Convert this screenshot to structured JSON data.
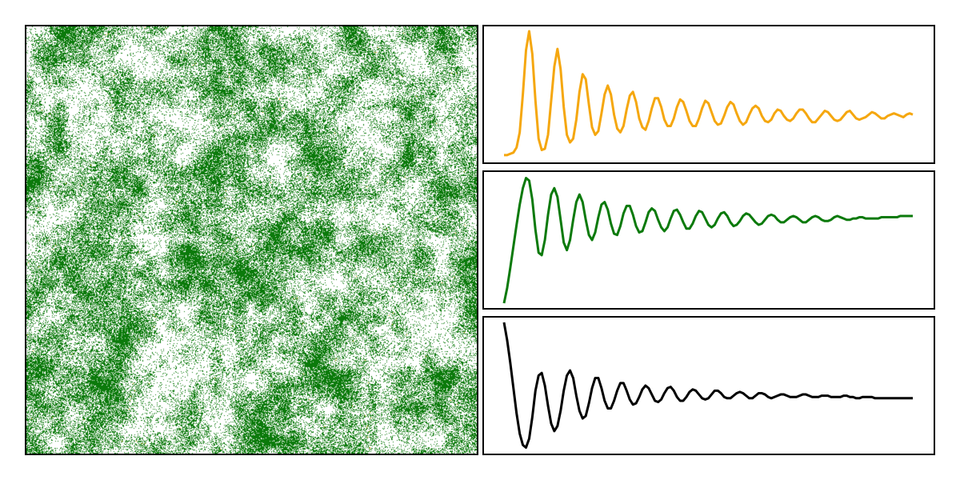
{
  "colors": {
    "burning": "#f5a70f",
    "tree": "#0b7a0b",
    "empty": "#000000",
    "background": "#ffffff",
    "frame": "#000000"
  },
  "lattice": {
    "description_states": [
      "empty",
      "tree",
      "burning"
    ]
  },
  "chart_data": [
    {
      "type": "line",
      "series": [
        {
          "key": "burning",
          "color": "#f5a70f",
          "x": [
            0,
            1,
            2,
            3,
            4,
            5,
            6,
            7,
            8,
            9,
            10,
            11,
            12,
            13,
            14,
            15,
            16,
            17,
            18,
            19,
            20,
            21,
            22,
            23,
            24,
            25,
            26,
            27,
            28,
            29,
            30,
            31,
            32,
            33,
            34,
            35,
            36,
            37,
            38,
            39,
            40,
            41,
            42,
            43,
            44,
            45,
            46,
            47,
            48,
            49,
            50,
            51,
            52,
            53,
            54,
            55,
            56,
            57,
            58,
            59,
            60,
            61,
            62,
            63,
            64,
            65,
            66,
            67,
            68,
            69,
            70,
            71,
            72,
            73,
            74,
            75,
            76,
            77,
            78,
            79,
            80,
            81,
            82,
            83,
            84,
            85,
            86,
            87,
            88,
            89,
            90,
            91,
            92,
            93,
            94,
            95,
            96,
            97,
            98,
            99,
            100,
            101,
            102,
            103,
            104,
            105,
            106,
            107,
            108,
            109,
            110,
            111,
            112,
            113,
            114,
            115,
            116,
            117,
            118,
            119,
            120,
            121,
            122,
            123,
            124,
            125,
            126,
            127,
            128,
            129,
            130
          ],
          "y": [
            0.02,
            0.02,
            0.03,
            0.04,
            0.08,
            0.2,
            0.5,
            0.85,
            1.0,
            0.82,
            0.45,
            0.15,
            0.06,
            0.07,
            0.18,
            0.45,
            0.72,
            0.86,
            0.7,
            0.4,
            0.18,
            0.12,
            0.15,
            0.3,
            0.52,
            0.66,
            0.62,
            0.42,
            0.24,
            0.18,
            0.21,
            0.35,
            0.5,
            0.57,
            0.5,
            0.34,
            0.23,
            0.2,
            0.25,
            0.38,
            0.49,
            0.52,
            0.44,
            0.31,
            0.24,
            0.22,
            0.29,
            0.39,
            0.47,
            0.47,
            0.4,
            0.3,
            0.25,
            0.25,
            0.31,
            0.4,
            0.46,
            0.44,
            0.37,
            0.29,
            0.25,
            0.25,
            0.31,
            0.39,
            0.45,
            0.43,
            0.36,
            0.29,
            0.26,
            0.27,
            0.33,
            0.4,
            0.44,
            0.42,
            0.35,
            0.29,
            0.26,
            0.28,
            0.34,
            0.39,
            0.41,
            0.39,
            0.33,
            0.29,
            0.28,
            0.3,
            0.35,
            0.38,
            0.37,
            0.33,
            0.3,
            0.29,
            0.31,
            0.35,
            0.38,
            0.38,
            0.35,
            0.31,
            0.28,
            0.28,
            0.31,
            0.34,
            0.37,
            0.36,
            0.33,
            0.3,
            0.29,
            0.3,
            0.33,
            0.36,
            0.37,
            0.34,
            0.31,
            0.3,
            0.31,
            0.32,
            0.34,
            0.36,
            0.35,
            0.33,
            0.31,
            0.31,
            0.33,
            0.34,
            0.35,
            0.34,
            0.33,
            0.32,
            0.34,
            0.35,
            0.34
          ],
          "ylim": [
            0,
            1
          ]
        }
      ]
    },
    {
      "type": "line",
      "series": [
        {
          "key": "trees",
          "color": "#0b7a0b",
          "x": [
            0,
            1,
            2,
            3,
            4,
            5,
            6,
            7,
            8,
            9,
            10,
            11,
            12,
            13,
            14,
            15,
            16,
            17,
            18,
            19,
            20,
            21,
            22,
            23,
            24,
            25,
            26,
            27,
            28,
            29,
            30,
            31,
            32,
            33,
            34,
            35,
            36,
            37,
            38,
            39,
            40,
            41,
            42,
            43,
            44,
            45,
            46,
            47,
            48,
            49,
            50,
            51,
            52,
            53,
            54,
            55,
            56,
            57,
            58,
            59,
            60,
            61,
            62,
            63,
            64,
            65,
            66,
            67,
            68,
            69,
            70,
            71,
            72,
            73,
            74,
            75,
            76,
            77,
            78,
            79,
            80,
            81,
            82,
            83,
            84,
            85,
            86,
            87,
            88,
            89,
            90,
            91,
            92,
            93,
            94,
            95,
            96,
            97,
            98,
            99,
            100,
            101,
            102,
            103,
            104,
            105,
            106,
            107,
            108,
            109,
            110,
            111,
            112,
            113,
            114,
            115,
            116,
            117,
            118,
            119,
            120,
            121,
            122,
            123,
            124,
            125,
            126,
            127,
            128,
            129,
            130
          ],
          "y": [
            0.0,
            0.12,
            0.28,
            0.45,
            0.62,
            0.78,
            0.91,
            0.99,
            0.97,
            0.82,
            0.58,
            0.4,
            0.38,
            0.5,
            0.7,
            0.86,
            0.91,
            0.84,
            0.66,
            0.48,
            0.42,
            0.5,
            0.66,
            0.8,
            0.86,
            0.8,
            0.66,
            0.54,
            0.5,
            0.56,
            0.68,
            0.78,
            0.8,
            0.74,
            0.63,
            0.55,
            0.54,
            0.61,
            0.71,
            0.77,
            0.77,
            0.7,
            0.61,
            0.56,
            0.57,
            0.64,
            0.72,
            0.75,
            0.73,
            0.66,
            0.6,
            0.57,
            0.6,
            0.67,
            0.73,
            0.74,
            0.7,
            0.64,
            0.59,
            0.59,
            0.63,
            0.69,
            0.73,
            0.72,
            0.67,
            0.62,
            0.6,
            0.62,
            0.67,
            0.71,
            0.72,
            0.69,
            0.64,
            0.61,
            0.62,
            0.65,
            0.69,
            0.71,
            0.7,
            0.67,
            0.64,
            0.62,
            0.63,
            0.66,
            0.69,
            0.7,
            0.69,
            0.66,
            0.64,
            0.64,
            0.66,
            0.68,
            0.69,
            0.68,
            0.66,
            0.64,
            0.64,
            0.66,
            0.68,
            0.69,
            0.68,
            0.66,
            0.65,
            0.65,
            0.66,
            0.68,
            0.69,
            0.68,
            0.67,
            0.66,
            0.66,
            0.67,
            0.67,
            0.68,
            0.68,
            0.67,
            0.67,
            0.67,
            0.67,
            0.67,
            0.68,
            0.68,
            0.68,
            0.68,
            0.68,
            0.68,
            0.69,
            0.69,
            0.69,
            0.69,
            0.69
          ],
          "ylim": [
            0,
            1
          ]
        }
      ]
    },
    {
      "type": "line",
      "series": [
        {
          "key": "empty",
          "color": "#000000",
          "x": [
            0,
            1,
            2,
            3,
            4,
            5,
            6,
            7,
            8,
            9,
            10,
            11,
            12,
            13,
            14,
            15,
            16,
            17,
            18,
            19,
            20,
            21,
            22,
            23,
            24,
            25,
            26,
            27,
            28,
            29,
            30,
            31,
            32,
            33,
            34,
            35,
            36,
            37,
            38,
            39,
            40,
            41,
            42,
            43,
            44,
            45,
            46,
            47,
            48,
            49,
            50,
            51,
            52,
            53,
            54,
            55,
            56,
            57,
            58,
            59,
            60,
            61,
            62,
            63,
            64,
            65,
            66,
            67,
            68,
            69,
            70,
            71,
            72,
            73,
            74,
            75,
            76,
            77,
            78,
            79,
            80,
            81,
            82,
            83,
            84,
            85,
            86,
            87,
            88,
            89,
            90,
            91,
            92,
            93,
            94,
            95,
            96,
            97,
            98,
            99,
            100,
            101,
            102,
            103,
            104,
            105,
            106,
            107,
            108,
            109,
            110,
            111,
            112,
            113,
            114,
            115,
            116,
            117,
            118,
            119,
            120,
            121,
            122,
            123,
            124,
            125,
            126,
            127,
            128,
            129,
            130
          ],
          "y": [
            1.0,
            0.86,
            0.68,
            0.48,
            0.28,
            0.12,
            0.03,
            0.01,
            0.08,
            0.25,
            0.46,
            0.58,
            0.6,
            0.5,
            0.34,
            0.2,
            0.14,
            0.18,
            0.3,
            0.46,
            0.58,
            0.62,
            0.56,
            0.42,
            0.3,
            0.24,
            0.26,
            0.36,
            0.48,
            0.56,
            0.56,
            0.48,
            0.38,
            0.32,
            0.32,
            0.38,
            0.46,
            0.52,
            0.52,
            0.46,
            0.39,
            0.35,
            0.36,
            0.41,
            0.47,
            0.5,
            0.48,
            0.43,
            0.38,
            0.37,
            0.39,
            0.44,
            0.48,
            0.49,
            0.46,
            0.41,
            0.38,
            0.38,
            0.41,
            0.45,
            0.47,
            0.46,
            0.43,
            0.4,
            0.39,
            0.4,
            0.43,
            0.46,
            0.46,
            0.44,
            0.41,
            0.4,
            0.4,
            0.42,
            0.44,
            0.45,
            0.44,
            0.42,
            0.4,
            0.4,
            0.42,
            0.44,
            0.44,
            0.43,
            0.41,
            0.4,
            0.41,
            0.42,
            0.43,
            0.43,
            0.42,
            0.41,
            0.41,
            0.41,
            0.42,
            0.43,
            0.43,
            0.42,
            0.41,
            0.41,
            0.41,
            0.42,
            0.42,
            0.42,
            0.41,
            0.41,
            0.41,
            0.41,
            0.42,
            0.42,
            0.41,
            0.41,
            0.4,
            0.4,
            0.41,
            0.41,
            0.41,
            0.41,
            0.4,
            0.4,
            0.4,
            0.4,
            0.4,
            0.4,
            0.4,
            0.4,
            0.4,
            0.4,
            0.4,
            0.4,
            0.4
          ],
          "ylim": [
            0,
            1
          ]
        }
      ]
    }
  ]
}
